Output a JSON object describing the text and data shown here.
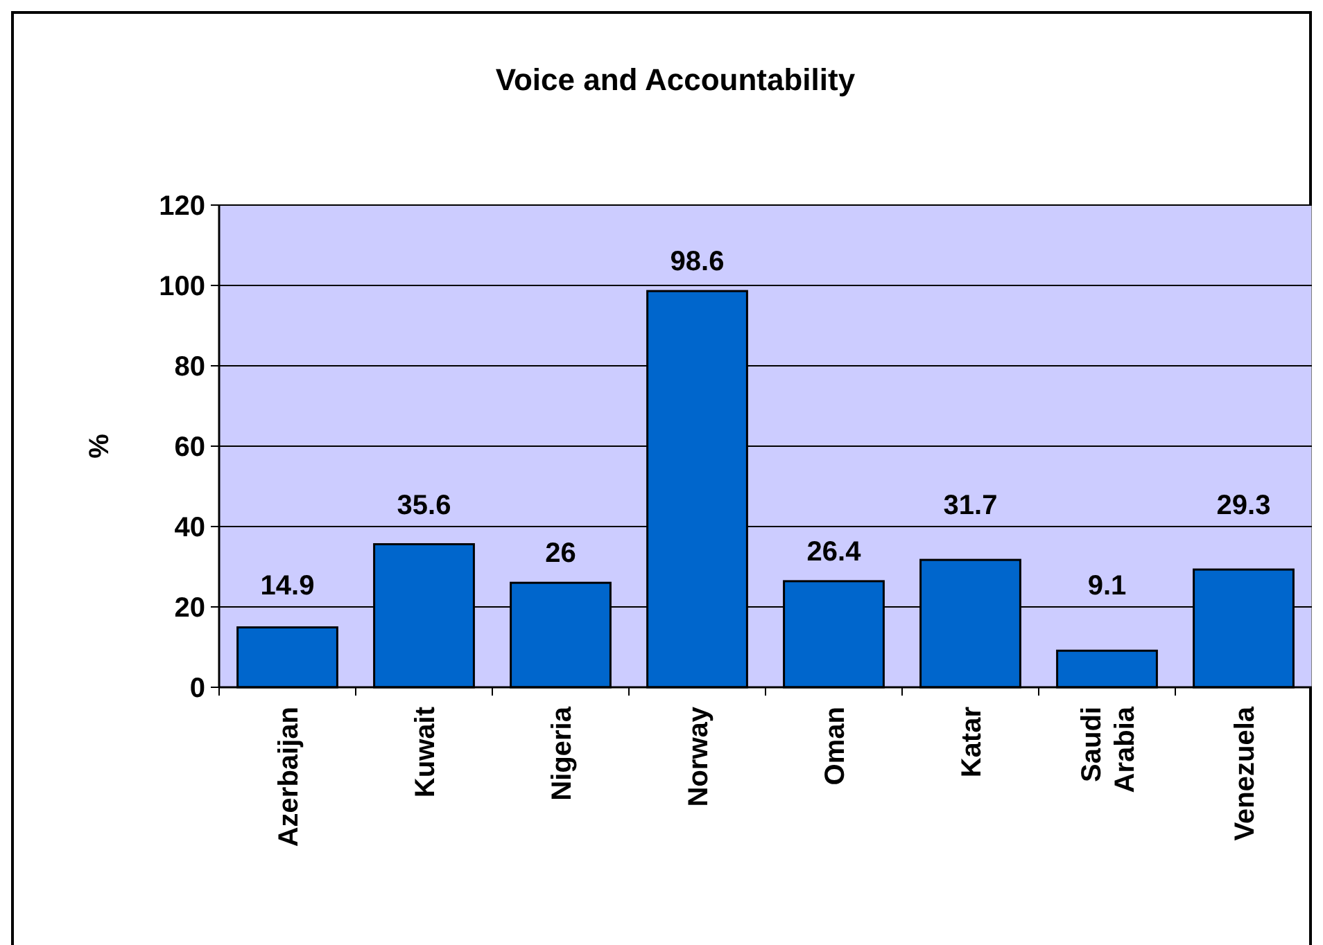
{
  "chart_data": {
    "type": "bar",
    "title": "Voice and Accountability",
    "ylabel": "%",
    "categories": [
      "Azerbaijan",
      "Kuwait",
      "Nigeria",
      "Norway",
      "Oman",
      "Katar",
      "Saudi Arabia",
      "Venezuela"
    ],
    "values": [
      14.9,
      35.6,
      26,
      98.6,
      26.4,
      31.7,
      9.1,
      29.3
    ],
    "color": "#0066cc",
    "ylim": [
      0,
      120
    ],
    "yticks": [
      0,
      20,
      40,
      60,
      80,
      100,
      120
    ],
    "grid": "y",
    "data_labels": true
  }
}
